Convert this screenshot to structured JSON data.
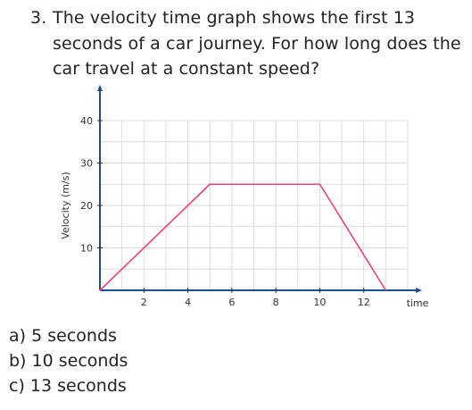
{
  "question": {
    "number": "3.",
    "text": "The velocity time graph shows the first 13 seconds of a car journey. For how long does the car travel at a constant speed?"
  },
  "options": [
    {
      "letter": "a)",
      "text": "5 seconds"
    },
    {
      "letter": "b)",
      "text": "10 seconds"
    },
    {
      "letter": "c)",
      "text": "13 seconds"
    }
  ],
  "chart_data": {
    "type": "line",
    "title": "",
    "xlabel": "time",
    "ylabel": "Velocity (m/s)",
    "xlim": [
      0,
      14
    ],
    "ylim": [
      0,
      40
    ],
    "x_ticks": [
      2,
      4,
      6,
      8,
      10,
      12
    ],
    "y_ticks": [
      10,
      20,
      30,
      40
    ],
    "grid": true,
    "series": [
      {
        "x": [
          0,
          5,
          10,
          13
        ],
        "y": [
          0,
          25,
          25,
          0
        ],
        "color": "#e8417e"
      }
    ],
    "axis_color": "#1d4f8c",
    "grid_color": "#dcdcdc"
  }
}
